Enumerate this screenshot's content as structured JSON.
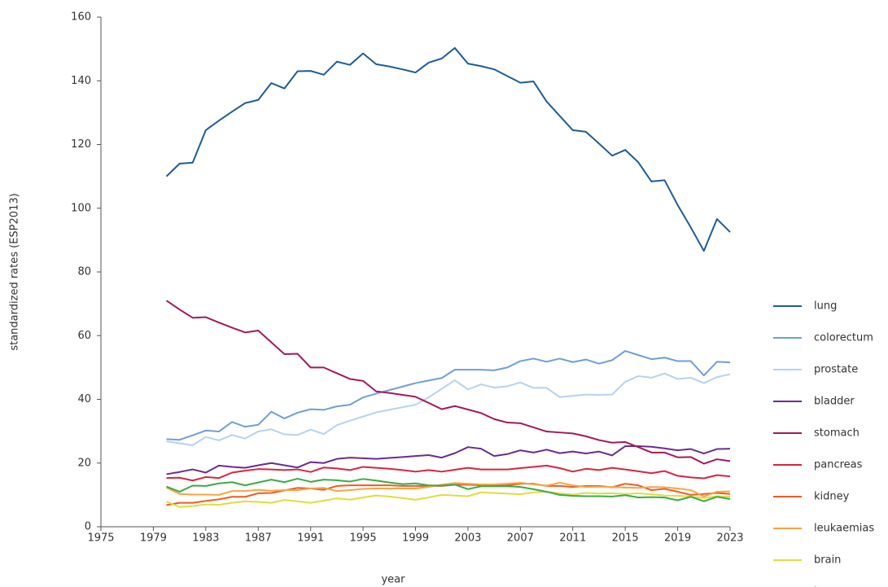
{
  "chart_data": {
    "type": "line",
    "x_label": "year",
    "y_label": "standardized rates (ESP2013)",
    "x": [
      1980,
      1981,
      1982,
      1983,
      1984,
      1985,
      1986,
      1987,
      1988,
      1989,
      1990,
      1991,
      1992,
      1993,
      1994,
      1995,
      1996,
      1997,
      1998,
      1999,
      2000,
      2001,
      2002,
      2003,
      2004,
      2005,
      2006,
      2007,
      2008,
      2009,
      2010,
      2011,
      2012,
      2013,
      2014,
      2015,
      2016,
      2017,
      2018,
      2019,
      2020,
      2021,
      2022,
      2023
    ],
    "xlim": [
      1975,
      2023
    ],
    "xticks": [
      1975,
      1979,
      1983,
      1987,
      1991,
      1995,
      1999,
      2003,
      2007,
      2011,
      2015,
      2019,
      2023
    ],
    "ylim": [
      0,
      160
    ],
    "yticks": [
      0,
      20,
      40,
      60,
      80,
      100,
      120,
      140,
      160
    ],
    "grid": false,
    "legend": "right",
    "series": [
      {
        "name": "lung",
        "color": "#1f5c99",
        "values": [
          110,
          114,
          114.3,
          124.5,
          127.5,
          130.3,
          133,
          134,
          139.3,
          137.6,
          143,
          143.1,
          141.9,
          146,
          145,
          148.6,
          145.2,
          144.5,
          143.6,
          142.6,
          145.7,
          147,
          150.3,
          145.4,
          144.6,
          143.6,
          141.5,
          139.4,
          139.8,
          133.5,
          129,
          124.5,
          124,
          120.3,
          116.5,
          118.3,
          114.4,
          108.4,
          108.8,
          101,
          94,
          86.6,
          96.6,
          92.5
        ]
      },
      {
        "name": "colorectum",
        "color": "#6f9fd8",
        "values": [
          27.5,
          27.3,
          28.7,
          30.2,
          29.9,
          32.9,
          31.4,
          32,
          36.1,
          34,
          35.8,
          36.9,
          36.7,
          37.8,
          38.3,
          40.6,
          41.8,
          42.9,
          44,
          45.1,
          45.9,
          46.7,
          49.3,
          49.3,
          49.3,
          49.1,
          50,
          52,
          52.8,
          51.8,
          52.8,
          51.7,
          52.5,
          51.2,
          52.3,
          55.2,
          53.9,
          52.6,
          53.1,
          52,
          52,
          47.5,
          51.8,
          51.6
        ]
      },
      {
        "name": "prostate",
        "color": "#b6d3ee",
        "values": [
          26.8,
          26.2,
          25.6,
          28.2,
          27.1,
          28.8,
          27.7,
          29.9,
          30.6,
          29,
          28.8,
          30.5,
          29.1,
          31.9,
          33.3,
          34.6,
          35.9,
          36.7,
          37.5,
          38.3,
          40.6,
          43.3,
          46,
          43.1,
          44.7,
          43.7,
          44.1,
          45.3,
          43.6,
          43.6,
          40.7,
          41.1,
          41.5,
          41.4,
          41.5,
          45.5,
          47.3,
          46.8,
          48.1,
          46.4,
          46.8,
          45.1,
          47,
          47.9
        ]
      },
      {
        "name": "bladder",
        "color": "#6a2c91",
        "values": [
          16.5,
          17.2,
          18,
          17,
          19.2,
          18.8,
          18.5,
          19.3,
          20,
          19.3,
          18.6,
          20.3,
          20,
          21.3,
          21.7,
          21.5,
          21.3,
          21.6,
          21.9,
          22.2,
          22.5,
          21.7,
          23.1,
          25,
          24.5,
          22.2,
          22.8,
          24,
          23.3,
          24.2,
          23.1,
          23.6,
          23,
          23.6,
          22.4,
          25.3,
          25.3,
          25.1,
          24.6,
          24,
          24.4,
          23,
          24.4,
          24.5
        ]
      },
      {
        "name": "stomach",
        "color": "#a3195b",
        "values": [
          71,
          68.2,
          65.6,
          65.8,
          64.1,
          62.5,
          61,
          61.6,
          57.9,
          54.2,
          54.3,
          50,
          50,
          48.2,
          46.4,
          45.8,
          42.5,
          42,
          41.4,
          40.8,
          38.9,
          36.9,
          37.9,
          36.8,
          35.7,
          33.8,
          32.7,
          32.5,
          31.2,
          29.9,
          29.6,
          29.3,
          28.4,
          27.2,
          26.4,
          26.6,
          25,
          23.3,
          23.3,
          21.8,
          21.9,
          19.8,
          21.2,
          20.6
        ]
      },
      {
        "name": "pancreas",
        "color": "#d7263d",
        "values": [
          15.3,
          15.4,
          14.5,
          15.6,
          15.3,
          17,
          17.6,
          18.1,
          18,
          17.8,
          18,
          17.2,
          18.6,
          18.3,
          17.8,
          18.8,
          18.5,
          18.2,
          17.8,
          17.3,
          17.8,
          17.3,
          17.9,
          18.5,
          18,
          18,
          18,
          18.4,
          18.8,
          19.2,
          18.4,
          17.3,
          18.2,
          17.8,
          18.5,
          18,
          17.4,
          16.8,
          17.5,
          16,
          15.5,
          15.2,
          16.2,
          15.8
        ]
      },
      {
        "name": "kidney",
        "color": "#f15a24",
        "values": [
          6.8,
          7.5,
          7.5,
          8.1,
          8.6,
          9.4,
          9.4,
          10.5,
          10.6,
          11.4,
          12.2,
          12,
          11.6,
          12.8,
          13,
          13,
          13,
          13,
          12.8,
          12.8,
          12.8,
          12.8,
          13.2,
          13.2,
          13,
          13,
          13,
          13.5,
          13.5,
          12.8,
          12.8,
          12.5,
          12.8,
          12.8,
          12.4,
          13.5,
          13,
          11.5,
          11.9,
          11,
          10,
          10.3,
          10.6,
          10.3
        ]
      },
      {
        "name": "leukaemias",
        "color": "#f7a541",
        "values": [
          12.3,
          10.3,
          10.1,
          10.1,
          10,
          11.2,
          11.2,
          11.6,
          11.3,
          11.5,
          11.5,
          12,
          12.2,
          11.2,
          11.5,
          11.9,
          12,
          12,
          12,
          12,
          12.5,
          13.2,
          13.7,
          13.5,
          13.3,
          13.3,
          13.5,
          13.8,
          13.3,
          12.9,
          13.8,
          13,
          12.5,
          12.6,
          12.5,
          12.3,
          12.2,
          12.5,
          12.4,
          12,
          11.5,
          9.5,
          11,
          11.1
        ]
      },
      {
        "name": "brain",
        "color": "#dede3c",
        "values": [
          7.9,
          6.2,
          6.5,
          7,
          6.9,
          7.5,
          8,
          7.8,
          7.5,
          8.4,
          8,
          7.5,
          8.2,
          8.9,
          8.5,
          9.2,
          9.8,
          9.5,
          9,
          8.5,
          9.2,
          10,
          9.8,
          9.6,
          10.8,
          10.6,
          10.4,
          10.2,
          10.8,
          11,
          10.5,
          10.1,
          10.6,
          10.4,
          10.5,
          10.3,
          10.5,
          10.2,
          9.8,
          9.7,
          9.5,
          9,
          9.6,
          9.4
        ]
      },
      {
        "name": "larynx",
        "color": "#3aab47",
        "values": [
          12.6,
          11,
          12.9,
          12.8,
          13.6,
          14,
          13,
          13.9,
          14.8,
          14,
          15.1,
          14.1,
          14.8,
          14.6,
          14.2,
          15,
          14.5,
          13.9,
          13.4,
          13.6,
          13,
          12.9,
          13.2,
          11.8,
          12.7,
          12.7,
          12.7,
          12.5,
          11.8,
          11,
          10,
          9.7,
          9.6,
          9.6,
          9.5,
          9.9,
          9.2,
          9.3,
          9.2,
          8.3,
          9.4,
          8,
          9.4,
          8.7
        ]
      }
    ]
  }
}
